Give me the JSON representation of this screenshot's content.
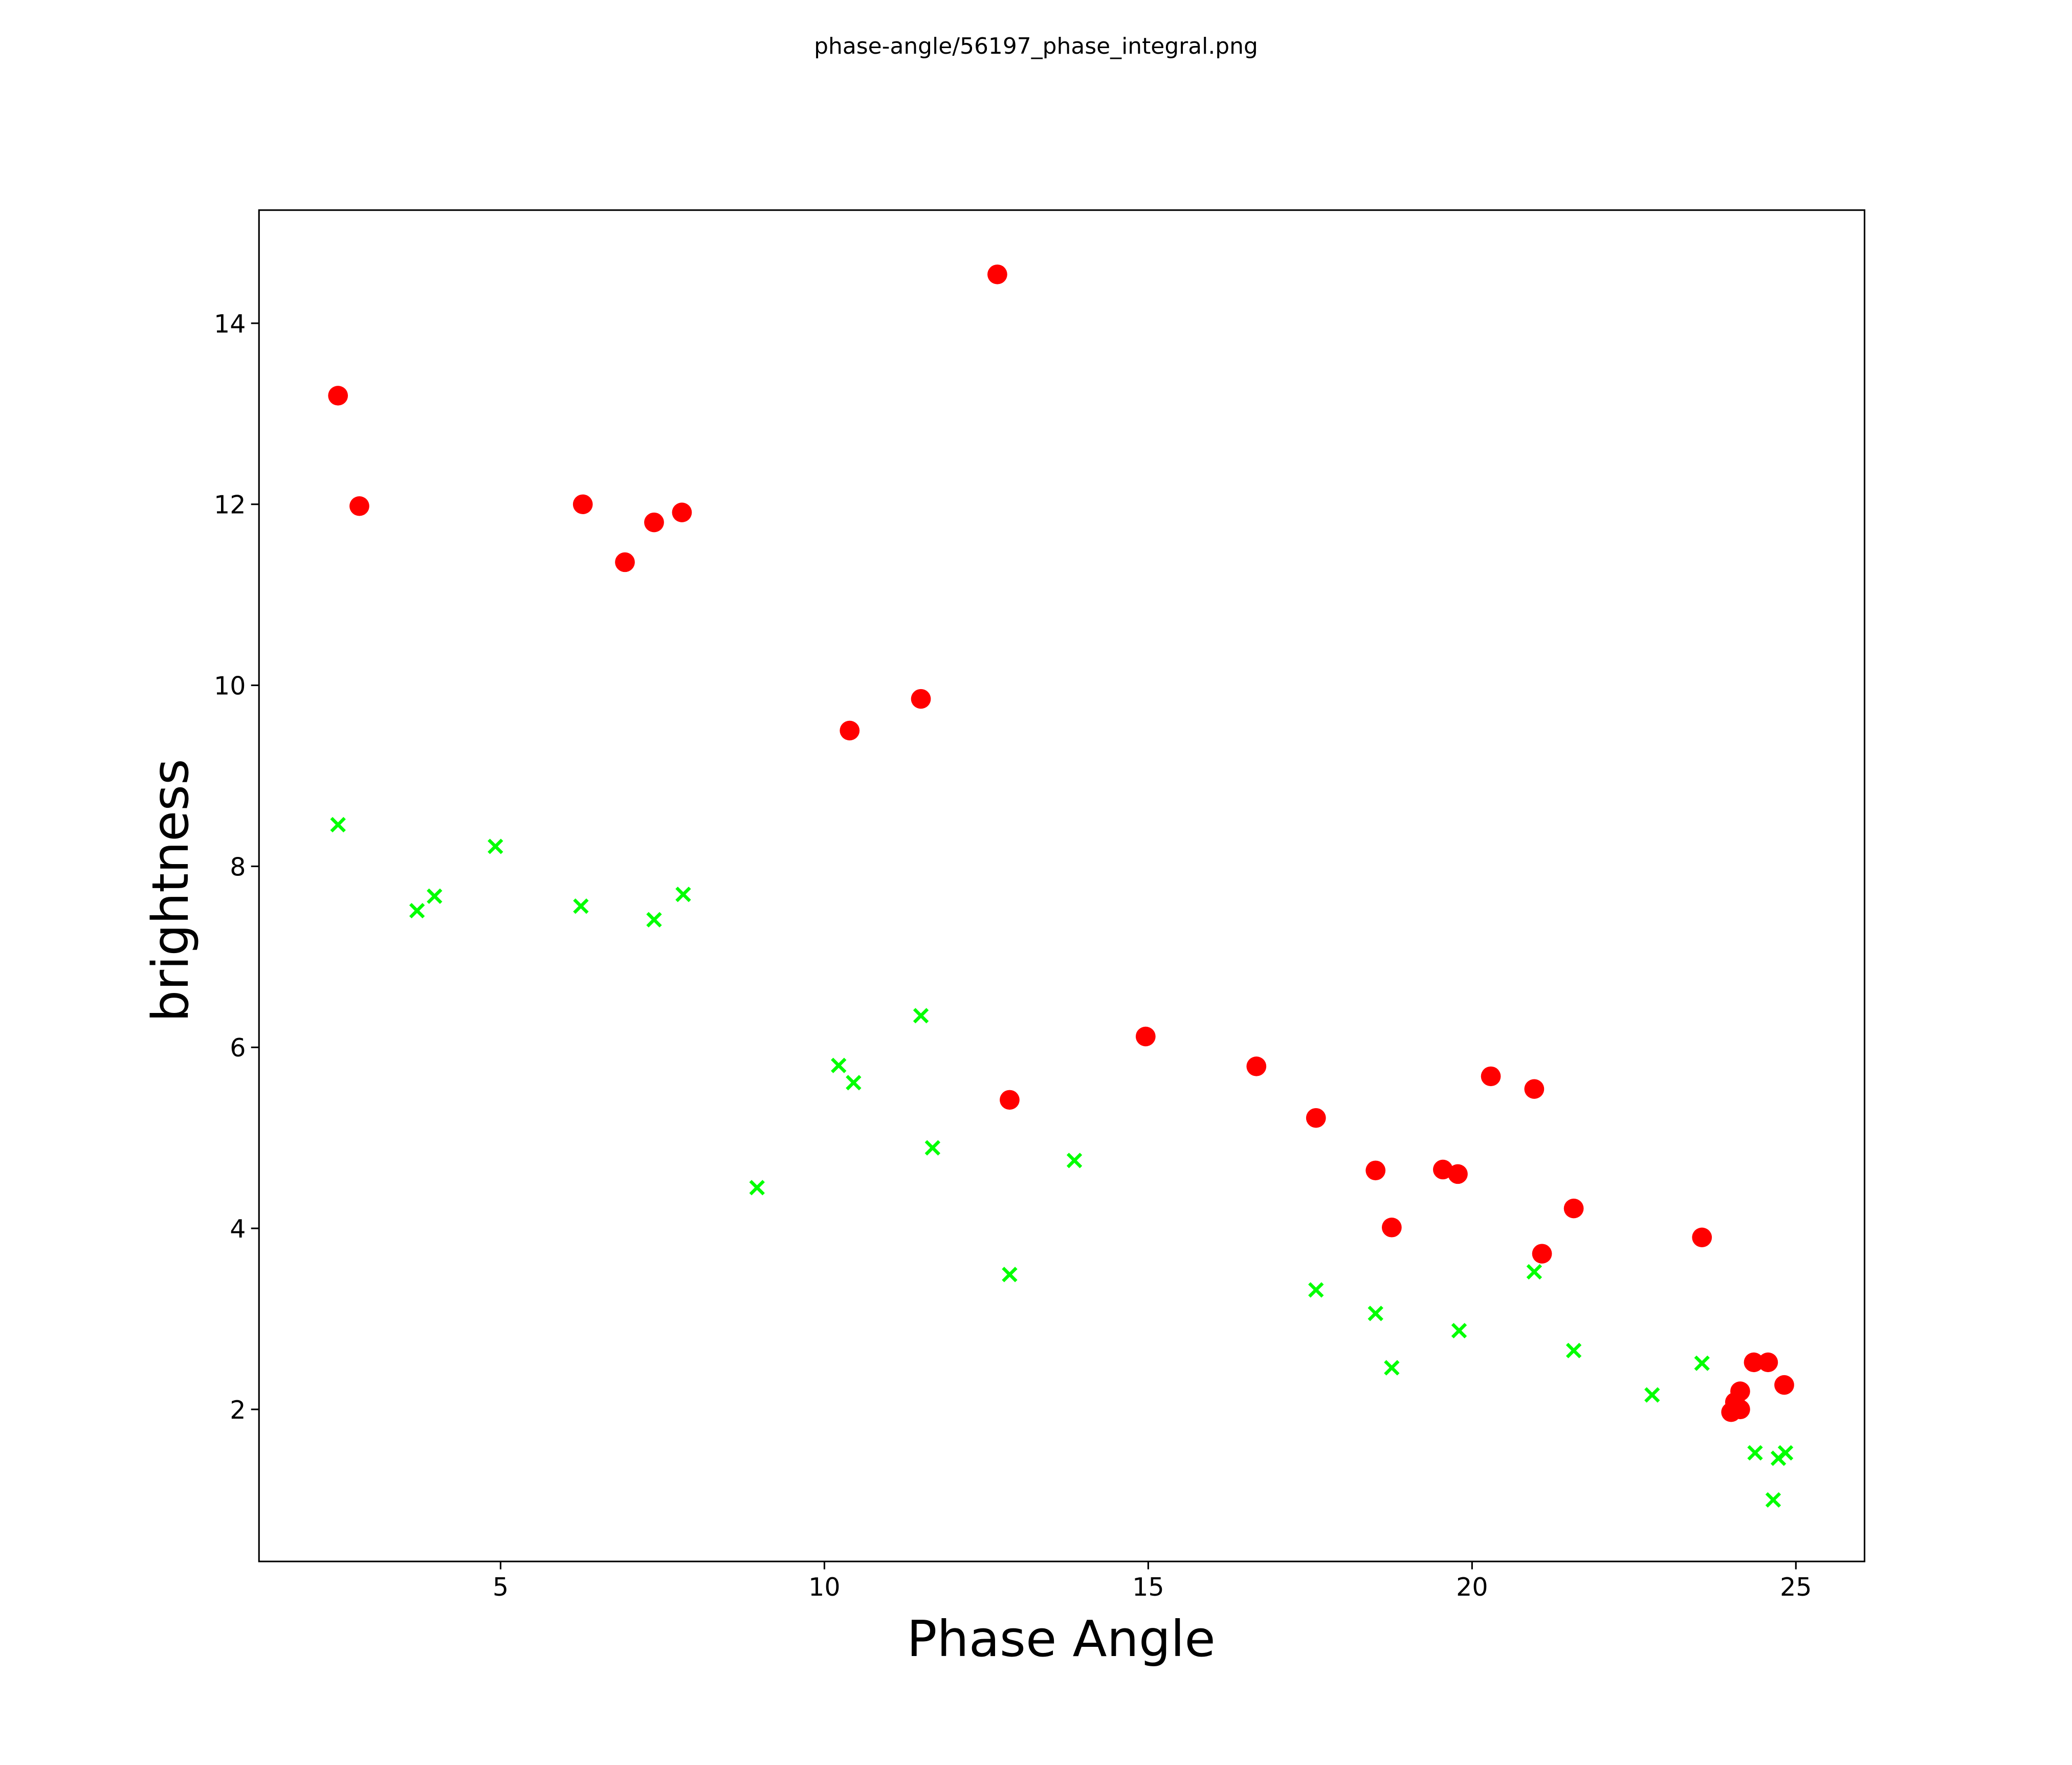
{
  "chart_data": {
    "type": "scatter",
    "title": "phase-angle/56197_phase_integral.png",
    "xlabel": "Phase Angle",
    "ylabel": "brightness",
    "xlim": [
      1.27,
      26.06
    ],
    "ylim": [
      0.32,
      15.25
    ],
    "grid": false,
    "legend": "none",
    "x_ticks": [
      5,
      10,
      15,
      20,
      25
    ],
    "x_tick_labels": [
      "5",
      "10",
      "15",
      "20",
      "25"
    ],
    "y_ticks": [
      2,
      4,
      6,
      8,
      10,
      12,
      14
    ],
    "y_tick_labels": [
      "2",
      "4",
      "6",
      "8",
      "10",
      "12",
      "14"
    ],
    "series": [
      {
        "name": "red-circles",
        "marker": "circle",
        "color": "#ff0000",
        "points": [
          [
            2.49,
            13.2
          ],
          [
            2.82,
            11.98
          ],
          [
            6.27,
            12.0
          ],
          [
            6.92,
            11.36
          ],
          [
            7.37,
            11.8
          ],
          [
            7.8,
            11.91
          ],
          [
            10.39,
            9.5
          ],
          [
            11.49,
            9.85
          ],
          [
            12.67,
            14.54
          ],
          [
            12.86,
            5.42
          ],
          [
            14.96,
            6.12
          ],
          [
            16.67,
            5.79
          ],
          [
            17.59,
            5.22
          ],
          [
            18.51,
            4.64
          ],
          [
            18.76,
            4.01
          ],
          [
            19.55,
            4.65
          ],
          [
            19.78,
            4.6
          ],
          [
            20.29,
            5.68
          ],
          [
            20.96,
            5.54
          ],
          [
            21.08,
            3.72
          ],
          [
            21.57,
            4.22
          ],
          [
            23.55,
            3.9
          ],
          [
            24.0,
            1.97
          ],
          [
            24.06,
            2.08
          ],
          [
            24.14,
            2.0
          ],
          [
            24.14,
            2.2
          ],
          [
            24.35,
            2.52
          ],
          [
            24.57,
            2.52
          ],
          [
            24.82,
            2.27
          ]
        ]
      },
      {
        "name": "green-crosses",
        "marker": "x",
        "color": "#00ff00",
        "points": [
          [
            2.49,
            8.46
          ],
          [
            3.71,
            7.51
          ],
          [
            3.98,
            7.67
          ],
          [
            4.92,
            8.22
          ],
          [
            6.24,
            7.56
          ],
          [
            7.37,
            7.41
          ],
          [
            7.82,
            7.69
          ],
          [
            8.96,
            4.45
          ],
          [
            10.22,
            5.8
          ],
          [
            10.45,
            5.61
          ],
          [
            11.49,
            6.35
          ],
          [
            11.67,
            4.89
          ],
          [
            12.86,
            3.49
          ],
          [
            13.86,
            4.75
          ],
          [
            17.59,
            3.32
          ],
          [
            18.51,
            3.06
          ],
          [
            18.76,
            2.46
          ],
          [
            19.8,
            2.87
          ],
          [
            20.96,
            3.52
          ],
          [
            21.57,
            2.65
          ],
          [
            22.78,
            2.16
          ],
          [
            23.55,
            2.51
          ],
          [
            24.37,
            1.52
          ],
          [
            24.65,
            1.0
          ],
          [
            24.73,
            1.46
          ],
          [
            24.84,
            1.52
          ]
        ]
      }
    ]
  }
}
